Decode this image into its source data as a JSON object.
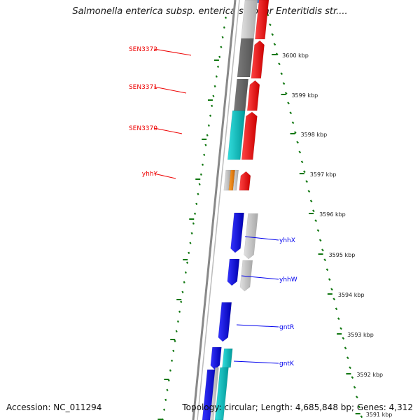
{
  "title": "Salmonella enterica subsp. enterica serovar Enteritidis str....",
  "accession": "Accession: NC_011294",
  "topology": "Topology: circular; Length: 4,685,848 bp; Genes: 4,312",
  "colors": {
    "forward_cds": "#ff0000",
    "reverse_cds": "#0000ff",
    "dark_gray_feature": "#6a6a6a",
    "light_gray_feature": "#c8c8c8",
    "cyan_feature": "#00c8c8",
    "orange_feature": "#ff8c00",
    "tick_green": "#117711",
    "backbone": "#777777"
  },
  "ticks": [
    {
      "label": "3600 kbp"
    },
    {
      "label": "3599 kbp"
    },
    {
      "label": "3598 kbp"
    },
    {
      "label": "3597 kbp"
    },
    {
      "label": "3596 kbp"
    },
    {
      "label": "3595 kbp"
    },
    {
      "label": "3594 kbp"
    },
    {
      "label": "3593 kbp"
    },
    {
      "label": "3592 kbp"
    },
    {
      "label": "3591 kbp"
    }
  ],
  "genes_left": [
    {
      "label": "SEN3372"
    },
    {
      "label": "SEN3371"
    },
    {
      "label": "SEN3370"
    },
    {
      "label": "yhhY"
    }
  ],
  "genes_right": [
    {
      "label": "yhhX"
    },
    {
      "label": "yhhW"
    },
    {
      "label": "gntR"
    },
    {
      "label": "gntK"
    }
  ]
}
